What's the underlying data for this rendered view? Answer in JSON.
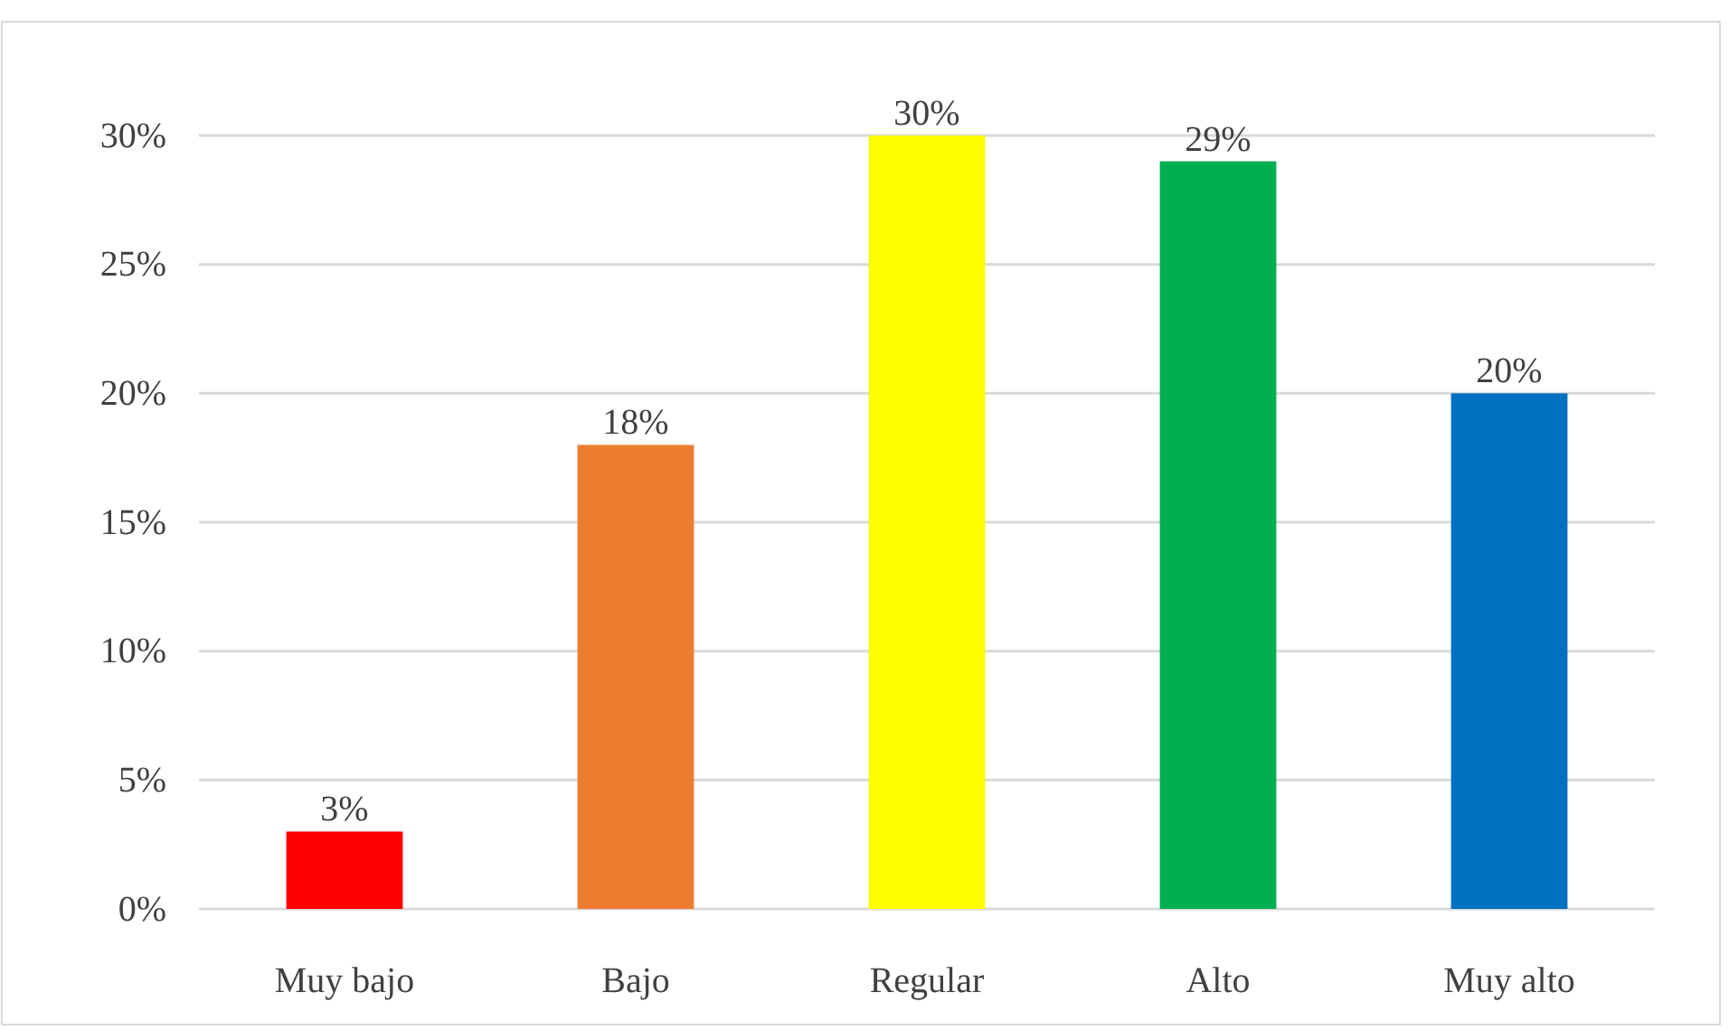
{
  "chart_data": {
    "type": "bar",
    "categories": [
      "Muy bajo",
      "Bajo",
      "Regular",
      "Alto",
      "Muy alto"
    ],
    "values": [
      3,
      18,
      30,
      29,
      20
    ],
    "colors": [
      "#ff0000",
      "#ed7d31",
      "#ffff00",
      "#00b050",
      "#0070c0"
    ],
    "value_labels": [
      "3%",
      "18%",
      "30%",
      "29%",
      "20%"
    ],
    "ylim": [
      0,
      30
    ],
    "yticks": [
      {
        "value": 0,
        "label": "0%"
      },
      {
        "value": 5,
        "label": "5%"
      },
      {
        "value": 10,
        "label": "10%"
      },
      {
        "value": 15,
        "label": "15%"
      },
      {
        "value": 20,
        "label": "20%"
      },
      {
        "value": 25,
        "label": "25%"
      },
      {
        "value": 30,
        "label": "30%"
      }
    ],
    "grid": "y"
  }
}
